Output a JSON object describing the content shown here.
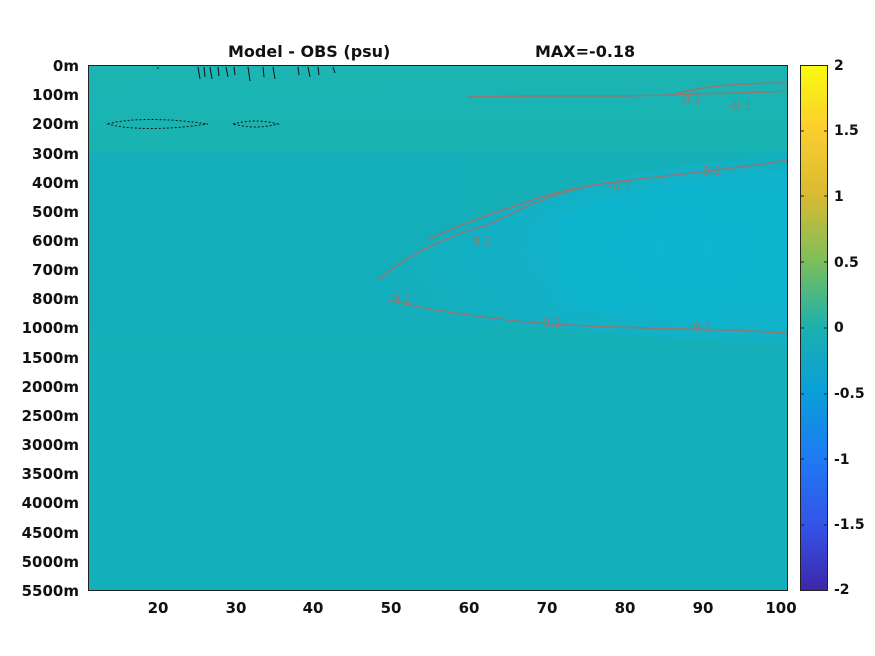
{
  "titles": {
    "left": "Model - OBS (psu)",
    "right": "MAX=-0.18"
  },
  "chart_data": {
    "type": "heatmap",
    "title": "Model - OBS (psu)",
    "annotation": "MAX=-0.18",
    "xlabel": "",
    "ylabel": "",
    "x_ticks": [
      "20",
      "30",
      "40",
      "50",
      "60",
      "70",
      "80",
      "90",
      "100"
    ],
    "x_tick_values": [
      20,
      30,
      40,
      50,
      60,
      70,
      80,
      90,
      100
    ],
    "xlim": [
      11,
      101
    ],
    "y_ticks": [
      "0m",
      "100m",
      "200m",
      "300m",
      "400m",
      "500m",
      "600m",
      "700m",
      "800m",
      "1000m",
      "1500m",
      "2000m",
      "2500m",
      "3000m",
      "3500m",
      "4000m",
      "4500m",
      "5000m",
      "5500m"
    ],
    "colorbar": {
      "ticks": [
        "2",
        "1.5",
        "1",
        "0.5",
        "0",
        "-0.5",
        "-1",
        "-1.5",
        "-2"
      ],
      "clim": [
        -2,
        2
      ],
      "colormap": "parula"
    },
    "field_summary": {
      "background_value": 0.0,
      "negative_tongue_value": -0.15,
      "tongue_start_x": 48,
      "tongue_depth_range_m": [
        300,
        1500
      ],
      "surface_positive_value": 0.05,
      "contour_level": -0.1,
      "contour_color": "#8a7a78"
    }
  }
}
